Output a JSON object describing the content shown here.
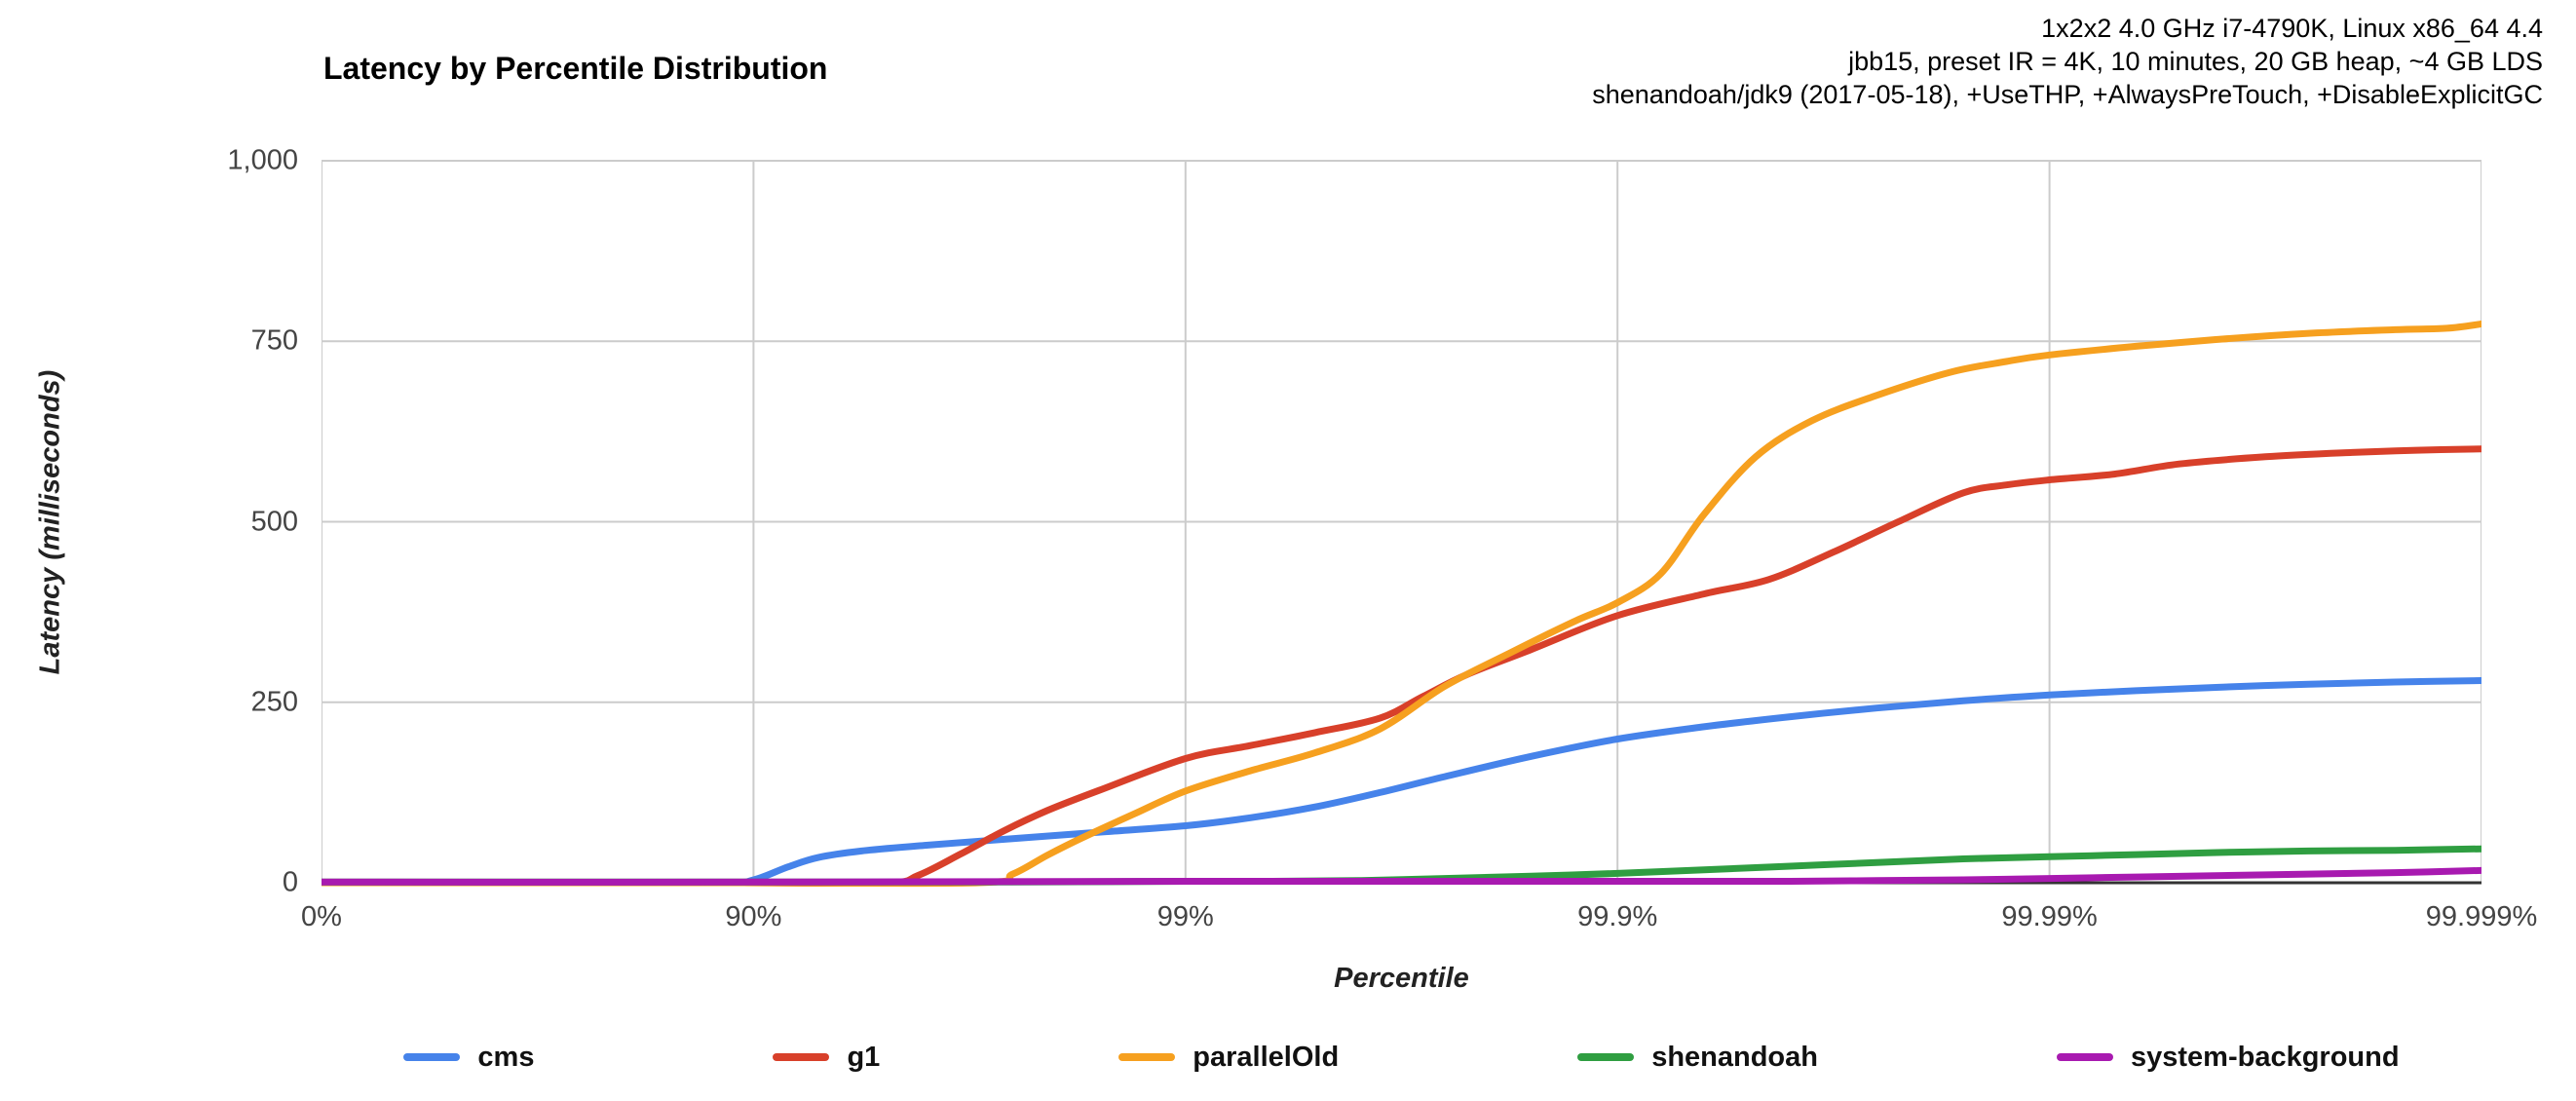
{
  "header_notes": {
    "lines": [
      "1x2x2 4.0 GHz i7-4790K, Linux x86_64 4.4",
      "jbb15, preset IR = 4K, 10 minutes, 20 GB heap, ~4 GB LDS",
      "shenandoah/jdk9 (2017-05-18), +UseTHP, +AlwaysPreTouch, +DisableExplicitGC"
    ]
  },
  "chart_data": {
    "type": "line",
    "title": "Latency by Percentile Distribution",
    "xlabel": "Percentile",
    "ylabel": "Latency (milliseconds)",
    "grid": true,
    "legend_position": "bottom",
    "x_axis": {
      "scale_note": "HdrHistogram percentile axis; point x stored as log-units t = log10(1/(1-p)), so t=0 is 0%, t=1 is 90%, t=2 is 99%, t=3 is 99.9%, t=4 is 99.99%, t=5 is 99.999%",
      "tick_log_units": [
        0,
        1,
        2,
        3,
        4,
        5
      ],
      "tick_labels": [
        "0%",
        "90%",
        "99%",
        "99.9%",
        "99.99%",
        "99.999%"
      ]
    },
    "y_axis": {
      "min": 0,
      "max": 1000,
      "ticks": [
        0,
        250,
        500,
        750,
        1000
      ],
      "tick_labels": [
        "0",
        "250",
        "500",
        "750",
        "1,000"
      ]
    },
    "units": "milliseconds",
    "series": [
      {
        "name": "cms",
        "color": "#4683ea",
        "points": [
          [
            0,
            0
          ],
          [
            0.5,
            0
          ],
          [
            0.92,
            0
          ],
          [
            1.0,
            4
          ],
          [
            1.08,
            22
          ],
          [
            1.15,
            35
          ],
          [
            1.25,
            44
          ],
          [
            1.4,
            52
          ],
          [
            1.6,
            61
          ],
          [
            1.8,
            70
          ],
          [
            2.0,
            79
          ],
          [
            2.15,
            90
          ],
          [
            2.3,
            105
          ],
          [
            2.45,
            125
          ],
          [
            2.6,
            147
          ],
          [
            2.8,
            175
          ],
          [
            3.0,
            199
          ],
          [
            3.2,
            216
          ],
          [
            3.4,
            230
          ],
          [
            3.6,
            242
          ],
          [
            3.8,
            252
          ],
          [
            4.0,
            260
          ],
          [
            4.2,
            266
          ],
          [
            4.4,
            271
          ],
          [
            4.6,
            275
          ],
          [
            4.8,
            278
          ],
          [
            5.0,
            280
          ]
        ]
      },
      {
        "name": "g1",
        "color": "#d8402a",
        "points": [
          [
            0,
            0
          ],
          [
            0.9,
            0
          ],
          [
            1.3,
            0
          ],
          [
            1.38,
            10
          ],
          [
            1.48,
            40
          ],
          [
            1.58,
            72
          ],
          [
            1.68,
            100
          ],
          [
            1.8,
            128
          ],
          [
            2.0,
            172
          ],
          [
            2.15,
            190
          ],
          [
            2.3,
            208
          ],
          [
            2.45,
            228
          ],
          [
            2.55,
            258
          ],
          [
            2.65,
            288
          ],
          [
            2.8,
            323
          ],
          [
            3.0,
            370
          ],
          [
            3.2,
            400
          ],
          [
            3.35,
            420
          ],
          [
            3.5,
            458
          ],
          [
            3.65,
            500
          ],
          [
            3.8,
            540
          ],
          [
            3.9,
            551
          ],
          [
            4.0,
            558
          ],
          [
            4.15,
            566
          ],
          [
            4.3,
            580
          ],
          [
            4.5,
            590
          ],
          [
            4.7,
            596
          ],
          [
            4.85,
            599
          ],
          [
            5.0,
            601
          ]
        ]
      },
      {
        "name": "parallelOld",
        "color": "#f6a01f",
        "points": [
          [
            0,
            0
          ],
          [
            0.9,
            0
          ],
          [
            1.52,
            0
          ],
          [
            1.6,
            12
          ],
          [
            1.68,
            38
          ],
          [
            1.76,
            62
          ],
          [
            1.88,
            95
          ],
          [
            2.0,
            127
          ],
          [
            2.15,
            155
          ],
          [
            2.3,
            180
          ],
          [
            2.45,
            213
          ],
          [
            2.6,
            272
          ],
          [
            2.75,
            318
          ],
          [
            2.9,
            362
          ],
          [
            3.0,
            388
          ],
          [
            3.1,
            428
          ],
          [
            3.2,
            510
          ],
          [
            3.32,
            590
          ],
          [
            3.45,
            640
          ],
          [
            3.6,
            675
          ],
          [
            3.77,
            707
          ],
          [
            3.9,
            722
          ],
          [
            4.0,
            731
          ],
          [
            4.2,
            743
          ],
          [
            4.4,
            753
          ],
          [
            4.6,
            761
          ],
          [
            4.8,
            766
          ],
          [
            4.92,
            768
          ],
          [
            5.0,
            774
          ]
        ]
      },
      {
        "name": "shenandoah",
        "color": "#2f9e41",
        "points": [
          [
            0,
            1
          ],
          [
            1.0,
            1
          ],
          [
            1.6,
            1
          ],
          [
            2.0,
            2
          ],
          [
            2.2,
            2
          ],
          [
            2.4,
            3
          ],
          [
            2.6,
            6
          ],
          [
            2.8,
            9
          ],
          [
            3.0,
            13
          ],
          [
            3.2,
            18
          ],
          [
            3.4,
            23
          ],
          [
            3.6,
            28
          ],
          [
            3.8,
            33
          ],
          [
            4.0,
            36
          ],
          [
            4.2,
            39
          ],
          [
            4.4,
            42
          ],
          [
            4.6,
            44
          ],
          [
            4.8,
            45
          ],
          [
            5.0,
            47
          ]
        ]
      },
      {
        "name": "system-background",
        "color": "#a81ab0",
        "points": [
          [
            0,
            1
          ],
          [
            1.0,
            1
          ],
          [
            2.0,
            2
          ],
          [
            2.6,
            2
          ],
          [
            3.0,
            2
          ],
          [
            3.4,
            2
          ],
          [
            3.6,
            3
          ],
          [
            3.8,
            4
          ],
          [
            4.0,
            6
          ],
          [
            4.2,
            8
          ],
          [
            4.4,
            10
          ],
          [
            4.6,
            12
          ],
          [
            4.8,
            14
          ],
          [
            5.0,
            17
          ]
        ]
      }
    ],
    "colors": {
      "grid": "#cccccc",
      "axis_line": "#333333",
      "tick_text": "#444444"
    }
  }
}
